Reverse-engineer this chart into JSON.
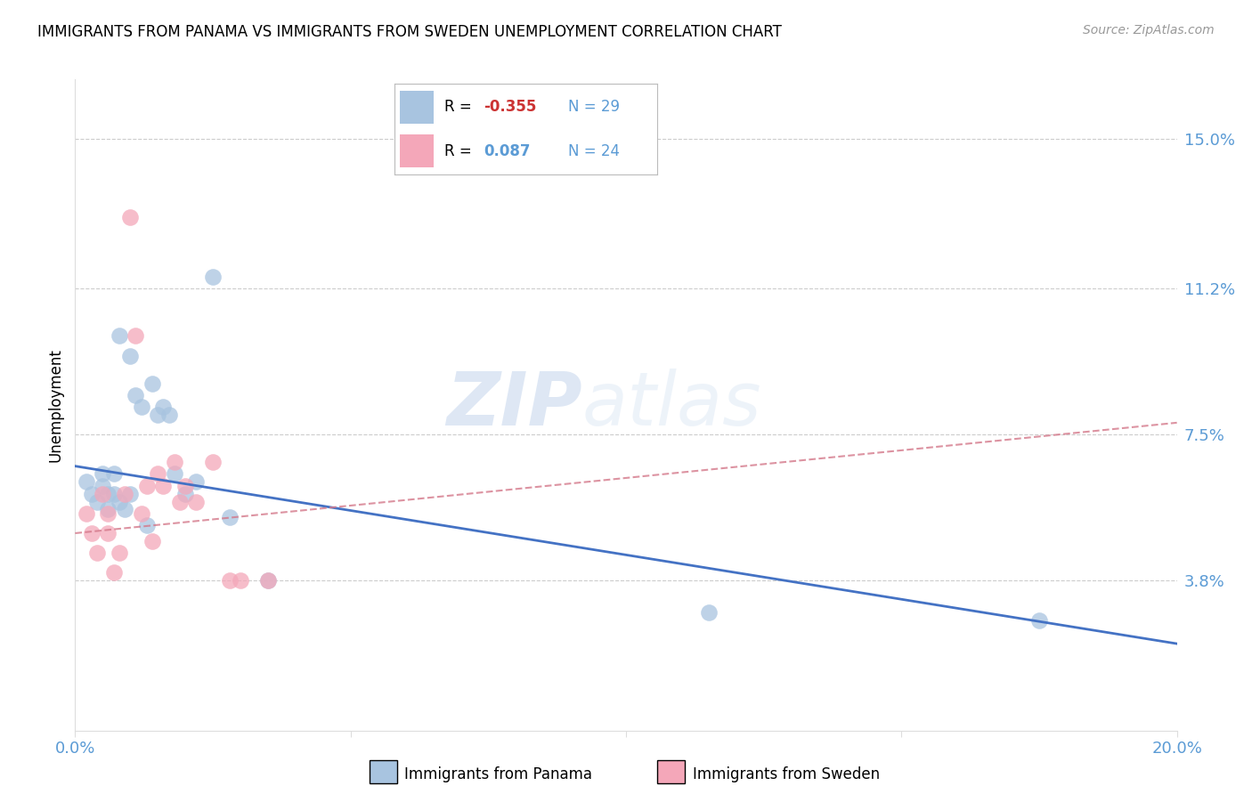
{
  "title": "IMMIGRANTS FROM PANAMA VS IMMIGRANTS FROM SWEDEN UNEMPLOYMENT CORRELATION CHART",
  "source": "Source: ZipAtlas.com",
  "ylabel": "Unemployment",
  "xlim": [
    0.0,
    0.2
  ],
  "ylim": [
    0.0,
    0.165
  ],
  "yticks": [
    0.038,
    0.075,
    0.112,
    0.15
  ],
  "ytick_labels": [
    "3.8%",
    "7.5%",
    "11.2%",
    "15.0%"
  ],
  "xticks": [
    0.0,
    0.05,
    0.1,
    0.15,
    0.2
  ],
  "xtick_labels": [
    "0.0%",
    "",
    "",
    "",
    "20.0%"
  ],
  "panama_color": "#a8c4e0",
  "sweden_color": "#f4a7b9",
  "panama_line_color": "#4472c4",
  "sweden_line_color": "#d4788a",
  "watermark_zip": "ZIP",
  "watermark_atlas": "atlas",
  "panama_scatter_x": [
    0.002,
    0.003,
    0.004,
    0.005,
    0.005,
    0.006,
    0.006,
    0.007,
    0.007,
    0.008,
    0.008,
    0.009,
    0.01,
    0.01,
    0.011,
    0.012,
    0.013,
    0.014,
    0.015,
    0.016,
    0.017,
    0.018,
    0.02,
    0.022,
    0.025,
    0.028,
    0.035,
    0.175,
    0.115
  ],
  "panama_scatter_y": [
    0.063,
    0.06,
    0.058,
    0.065,
    0.062,
    0.06,
    0.056,
    0.065,
    0.06,
    0.058,
    0.1,
    0.056,
    0.095,
    0.06,
    0.085,
    0.082,
    0.052,
    0.088,
    0.08,
    0.082,
    0.08,
    0.065,
    0.06,
    0.063,
    0.115,
    0.054,
    0.038,
    0.028,
    0.03
  ],
  "sweden_scatter_x": [
    0.002,
    0.003,
    0.004,
    0.005,
    0.006,
    0.006,
    0.007,
    0.008,
    0.009,
    0.01,
    0.011,
    0.012,
    0.013,
    0.014,
    0.015,
    0.016,
    0.018,
    0.019,
    0.02,
    0.022,
    0.025,
    0.028,
    0.03,
    0.035
  ],
  "sweden_scatter_y": [
    0.055,
    0.05,
    0.045,
    0.06,
    0.055,
    0.05,
    0.04,
    0.045,
    0.06,
    0.13,
    0.1,
    0.055,
    0.062,
    0.048,
    0.065,
    0.062,
    0.068,
    0.058,
    0.062,
    0.058,
    0.068,
    0.038,
    0.038,
    0.038
  ],
  "panama_line_x": [
    0.0,
    0.2
  ],
  "panama_line_y": [
    0.067,
    0.022
  ],
  "sweden_line_x": [
    0.0,
    0.2
  ],
  "sweden_line_y": [
    0.05,
    0.078
  ]
}
